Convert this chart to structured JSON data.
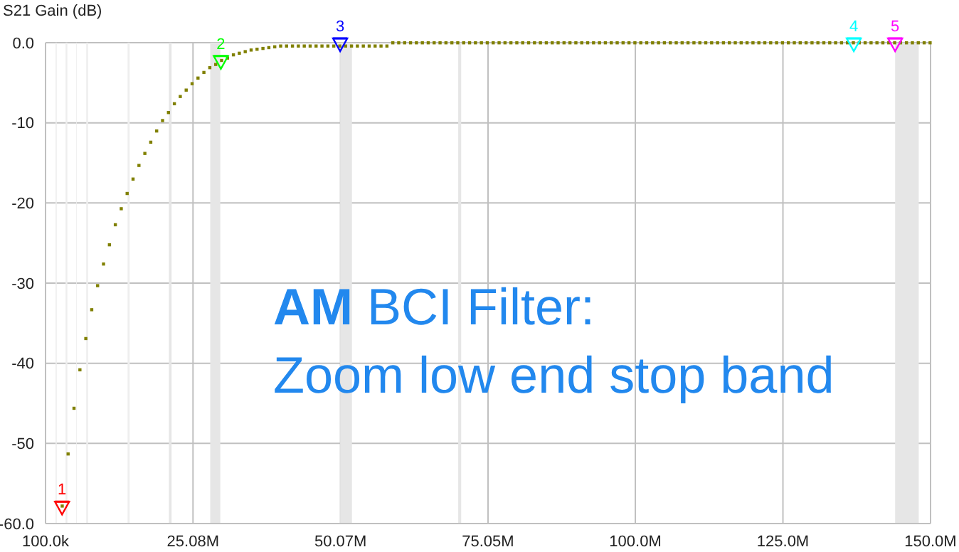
{
  "chart_data": {
    "type": "scatter",
    "ylabel": "S21 Gain (dB)",
    "annotations": [
      "AM BCI Filter:\nZoom low end stop band"
    ],
    "xlim": [
      100000,
      150000000
    ],
    "xticks": [
      {
        "value": 100000,
        "label": "100.0k"
      },
      {
        "value": 25080000,
        "label": "25.08M"
      },
      {
        "value": 50070000,
        "label": "50.07M"
      },
      {
        "value": 75050000,
        "label": "75.05M"
      },
      {
        "value": 100000000,
        "label": "100.0M"
      },
      {
        "value": 125000000,
        "label": "125.0M"
      },
      {
        "value": 150000000,
        "label": "150.0M"
      }
    ],
    "ylim": [
      -60,
      0
    ],
    "yticks": [
      {
        "value": 0,
        "label": "0.0"
      },
      -10,
      -20,
      -30,
      -40,
      -50,
      {
        "value": -60,
        "label": "-60.0"
      }
    ],
    "grid": true,
    "bands": [
      {
        "axis": "x",
        "from": 1800000,
        "to": 2000000,
        "color": "#eeeeee"
      },
      {
        "axis": "x",
        "from": 3500000,
        "to": 3800000,
        "color": "#eeeeee"
      },
      {
        "axis": "x",
        "from": 5300000,
        "to": 5400000,
        "color": "#eeeeee"
      },
      {
        "axis": "x",
        "from": 7000000,
        "to": 7300000,
        "color": "#eeeeee"
      },
      {
        "axis": "x",
        "from": 14000000,
        "to": 14350000,
        "color": "#eeeeee"
      },
      {
        "axis": "x",
        "from": 21000000,
        "to": 21450000,
        "color": "#e6e6e6"
      },
      {
        "axis": "x",
        "from": 28000000,
        "to": 29700000,
        "color": "#e6e6e6"
      },
      {
        "axis": "x",
        "from": 50000000,
        "to": 52000000,
        "color": "#e6e6e6"
      },
      {
        "axis": "x",
        "from": 70000000,
        "to": 70500000,
        "color": "#e6e6e6"
      },
      {
        "axis": "x",
        "from": 144000000,
        "to": 148000000,
        "color": "#e6e6e6"
      }
    ],
    "series": [
      {
        "color": "#808000",
        "marker": "square",
        "x": [
          2900000,
          3900000,
          4900000,
          5900000,
          6900000,
          7900000,
          8900000,
          9900000,
          10900000,
          11900000,
          12900000,
          13900000,
          14900000,
          15900000,
          16900000,
          17900000,
          18900000,
          19900000,
          20900000,
          21900000,
          22900000,
          23900000,
          24900000,
          25900000,
          26900000,
          27900000,
          28900000,
          29900000,
          30900000,
          31900000,
          32900000,
          33900000,
          34900000,
          35900000,
          36900000,
          37900000,
          38900000,
          39900000,
          40900000,
          41900000,
          42900000,
          43900000,
          44900000,
          45900000,
          46900000,
          47900000,
          48900000,
          49900000,
          50900000,
          51900000,
          52900000,
          53900000,
          54900000,
          55900000,
          56900000,
          57900000,
          58900000,
          59900000,
          60900000,
          61900000,
          62900000,
          63900000,
          64900000,
          65900000,
          66900000,
          67900000,
          68900000,
          69900000,
          70900000,
          71900000,
          72900000,
          73900000,
          74900000,
          75900000,
          76900000,
          77900000,
          78900000,
          79900000,
          80900000,
          81900000,
          82900000,
          83900000,
          84900000,
          85900000,
          86900000,
          87900000,
          88900000,
          89900000,
          90900000,
          91900000,
          92900000,
          93900000,
          94900000,
          95900000,
          96900000,
          97900000,
          98900000,
          99900000,
          100900000,
          101900000,
          102900000,
          103900000,
          104900000,
          105900000,
          106900000,
          107900000,
          108900000,
          109900000,
          110900000,
          111900000,
          112900000,
          113900000,
          114900000,
          115900000,
          116900000,
          117900000,
          118900000,
          119900000,
          120900000,
          121900000,
          122900000,
          123900000,
          124900000,
          125900000,
          126900000,
          127900000,
          128900000,
          129900000,
          130900000,
          131900000,
          132900000,
          133900000,
          134900000,
          135900000,
          136900000,
          137900000,
          138900000,
          139900000,
          140900000,
          141900000,
          142900000,
          143900000,
          144900000,
          145900000,
          146900000,
          147900000,
          148900000,
          149900000
        ],
        "values": [
          -57.8,
          -51.3,
          -45.6,
          -40.8,
          -36.9,
          -33.3,
          -30.3,
          -27.6,
          -25.2,
          -22.7,
          -20.7,
          -18.8,
          -17.0,
          -15.3,
          -13.8,
          -12.4,
          -11.0,
          -9.7,
          -8.7,
          -7.6,
          -6.7,
          -5.9,
          -5.1,
          -4.4,
          -3.7,
          -3.1,
          -2.7,
          -2.2,
          -1.9,
          -1.5,
          -1.3,
          -1.1,
          -0.9,
          -0.8,
          -0.7,
          -0.6,
          -0.5,
          -0.4,
          -0.4,
          -0.4,
          -0.4,
          -0.4,
          -0.4,
          -0.4,
          -0.4,
          -0.4,
          -0.4,
          -0.4,
          -0.4,
          -0.4,
          -0.4,
          -0.4,
          -0.4,
          -0.4,
          -0.4,
          -0.4,
          0,
          0,
          0,
          0,
          0,
          0,
          0,
          0,
          0,
          0,
          0,
          0,
          0,
          0,
          0,
          0,
          0,
          0,
          0,
          0,
          0,
          0,
          0,
          0,
          0,
          0,
          0,
          0,
          0,
          0,
          0,
          0,
          0,
          0,
          0,
          0,
          0,
          0,
          0,
          0,
          0,
          0,
          0,
          0,
          0,
          0,
          0,
          0,
          0,
          0,
          0,
          0,
          0,
          0,
          0,
          0,
          0,
          0,
          0,
          0,
          0,
          0,
          0,
          0,
          0,
          0,
          0,
          0,
          0,
          0,
          0,
          0,
          0,
          0,
          0,
          0,
          0,
          0,
          0,
          0,
          0,
          0,
          0,
          0,
          0,
          0,
          0,
          0,
          0,
          0,
          0,
          0
        ]
      },
      {
        "name": "1",
        "color": "#ff0000",
        "marker": "triangle",
        "x": [
          2900000
        ],
        "values": [
          -57.8
        ]
      },
      {
        "name": "2",
        "color": "#00ff00",
        "marker": "triangle",
        "x": [
          29800000
        ],
        "values": [
          -2.2
        ]
      },
      {
        "name": "3",
        "color": "#0000ff",
        "marker": "triangle",
        "x": [
          50000000
        ],
        "values": [
          0
        ]
      },
      {
        "name": "4",
        "color": "#00ffff",
        "marker": "triangle",
        "x": [
          137000000
        ],
        "values": [
          0
        ]
      },
      {
        "name": "5",
        "color": "#ff00ff",
        "marker": "triangle",
        "x": [
          144000000
        ],
        "values": [
          0
        ]
      }
    ]
  }
}
